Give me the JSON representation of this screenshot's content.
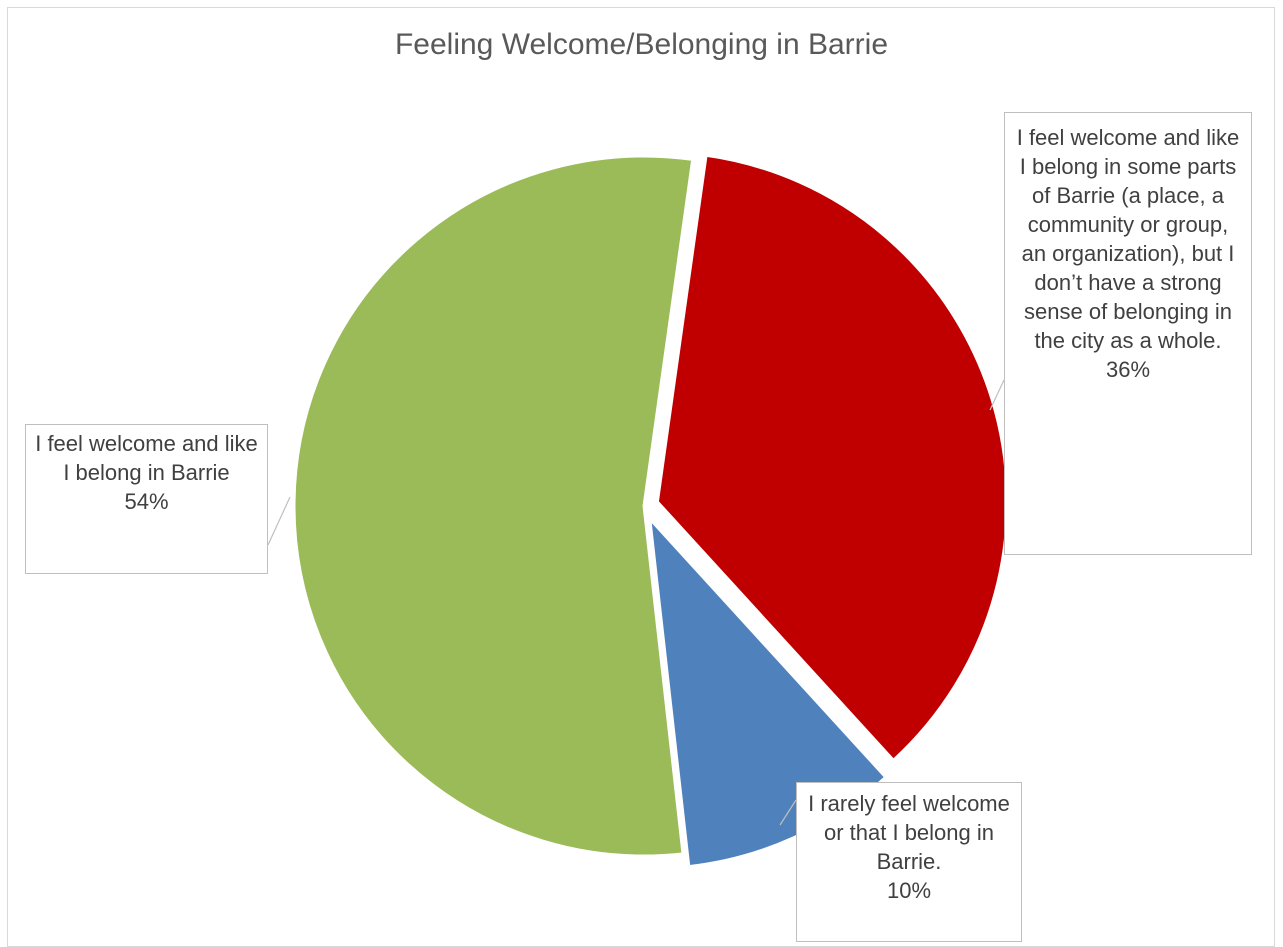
{
  "chart_data": {
    "type": "pie",
    "title": "Feeling Welcome/Belonging in Barrie",
    "slices": [
      {
        "label": "I feel welcome and like I belong in some parts of Barrie (a place, a community or group, an organization), but I don’t have a strong sense of belonging in the city as a whole.",
        "value": 36,
        "value_label": "36%",
        "color": "#c00000",
        "exploded": true
      },
      {
        "label": "I rarely feel welcome or that I belong in Barrie.",
        "value": 10,
        "value_label": "10%",
        "color": "#4f81bd",
        "exploded": true
      },
      {
        "label": "I feel welcome and like I belong in Barrie",
        "value": 54,
        "value_label": "54%",
        "color": "#9bbb59",
        "exploded": false
      }
    ],
    "legend": "none",
    "start_angle": "top, clockwise"
  }
}
